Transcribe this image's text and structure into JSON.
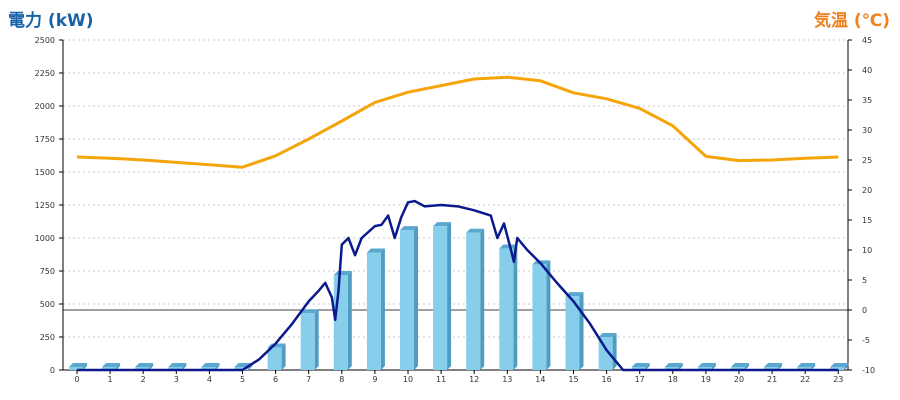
{
  "header": {
    "left_title": "電力 (kW)",
    "right_title": "気温 (℃)"
  },
  "chart_data": {
    "type": "bar",
    "x": [
      "0",
      "1",
      "2",
      "3",
      "4",
      "5",
      "6",
      "7",
      "8",
      "9",
      "10",
      "11",
      "12",
      "13",
      "14",
      "15",
      "16",
      "17",
      "18",
      "19",
      "20",
      "21",
      "22",
      "23"
    ],
    "y_left": {
      "ylim": [
        0,
        2500
      ],
      "ticks": [
        0,
        250,
        500,
        750,
        1000,
        1250,
        1500,
        1750,
        2000,
        2250,
        2500
      ]
    },
    "y_right": {
      "ylim": [
        -10,
        45
      ],
      "ticks": [
        -10,
        -5,
        0,
        5,
        10,
        15,
        20,
        25,
        30,
        35,
        40,
        45
      ]
    },
    "grid": true,
    "bars": {
      "axis": "left",
      "values": [
        0,
        0,
        0,
        0,
        0,
        0,
        170,
        430,
        720,
        890,
        1060,
        1090,
        1040,
        920,
        800,
        560,
        250,
        0,
        0,
        0,
        0,
        0,
        0,
        0
      ],
      "color": "#87ceeb"
    },
    "power_line": {
      "axis": "left",
      "color": "#0a1a8c",
      "points": [
        [
          0,
          0
        ],
        [
          1,
          0
        ],
        [
          2,
          0
        ],
        [
          3,
          0
        ],
        [
          4,
          0
        ],
        [
          5,
          0
        ],
        [
          5.5,
          80
        ],
        [
          6,
          200
        ],
        [
          6.5,
          350
        ],
        [
          7,
          520
        ],
        [
          7.3,
          600
        ],
        [
          7.5,
          660
        ],
        [
          7.7,
          550
        ],
        [
          7.8,
          380
        ],
        [
          7.9,
          600
        ],
        [
          8,
          950
        ],
        [
          8.2,
          1000
        ],
        [
          8.4,
          870
        ],
        [
          8.6,
          1000
        ],
        [
          9,
          1090
        ],
        [
          9.2,
          1100
        ],
        [
          9.4,
          1170
        ],
        [
          9.6,
          1000
        ],
        [
          9.8,
          1160
        ],
        [
          10,
          1270
        ],
        [
          10.2,
          1280
        ],
        [
          10.5,
          1240
        ],
        [
          11,
          1250
        ],
        [
          11.5,
          1240
        ],
        [
          12,
          1210
        ],
        [
          12.5,
          1170
        ],
        [
          12.7,
          1000
        ],
        [
          12.9,
          1110
        ],
        [
          13.1,
          920
        ],
        [
          13.2,
          820
        ],
        [
          13.3,
          1000
        ],
        [
          13.6,
          910
        ],
        [
          14,
          810
        ],
        [
          14.5,
          660
        ],
        [
          15,
          520
        ],
        [
          15.5,
          350
        ],
        [
          16,
          150
        ],
        [
          16.5,
          0
        ],
        [
          17,
          0
        ],
        [
          18,
          0
        ],
        [
          19,
          0
        ],
        [
          20,
          0
        ],
        [
          21,
          0
        ],
        [
          22,
          0
        ],
        [
          23,
          0
        ]
      ]
    },
    "temperature_line": {
      "axis": "right",
      "color": "#f5a40a",
      "points": [
        [
          0,
          25.5
        ],
        [
          1,
          25.3
        ],
        [
          2,
          25
        ],
        [
          3,
          24.6
        ],
        [
          4,
          24.2
        ],
        [
          5,
          23.8
        ],
        [
          6,
          25.7
        ],
        [
          7,
          28.5
        ],
        [
          8,
          31.5
        ],
        [
          9,
          34.6
        ],
        [
          10,
          36.3
        ],
        [
          11,
          37.4
        ],
        [
          12,
          38.5
        ],
        [
          13,
          38.8
        ],
        [
          14,
          38.2
        ],
        [
          15,
          36.2
        ],
        [
          16,
          35.2
        ],
        [
          17,
          33.6
        ],
        [
          18,
          30.7
        ],
        [
          19,
          25.6
        ],
        [
          20,
          24.9
        ],
        [
          21,
          25
        ],
        [
          22,
          25.3
        ],
        [
          23,
          25.5
        ]
      ]
    }
  }
}
